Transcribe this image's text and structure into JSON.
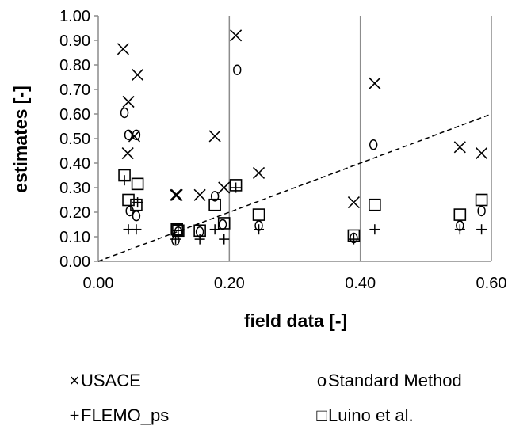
{
  "chart_data": {
    "type": "scatter",
    "xlabel": "field data [-]",
    "ylabel": "estimates [-]",
    "xlim": [
      0,
      0.6
    ],
    "ylim": [
      0,
      1.0
    ],
    "xticks": [
      "0.00",
      "0.20",
      "0.40",
      "0.60"
    ],
    "yticks": [
      "0.00",
      "0.10",
      "0.20",
      "0.30",
      "0.40",
      "0.50",
      "0.60",
      "0.70",
      "0.80",
      "0.90",
      "1.00"
    ],
    "grid": "vertical",
    "legend_position": "bottom",
    "reference_line": {
      "style": "dashed",
      "points": [
        [
          0,
          0
        ],
        [
          0.6,
          0.6
        ]
      ]
    },
    "series": [
      {
        "name": "USACE",
        "marker": "x",
        "points": [
          [
            0.038,
            0.865
          ],
          [
            0.046,
            0.65
          ],
          [
            0.045,
            0.44
          ],
          [
            0.06,
            0.76
          ],
          [
            0.055,
            0.51
          ],
          [
            0.118,
            0.27
          ],
          [
            0.12,
            0.27
          ],
          [
            0.155,
            0.27
          ],
          [
            0.178,
            0.51
          ],
          [
            0.192,
            0.3
          ],
          [
            0.21,
            0.92
          ],
          [
            0.245,
            0.36
          ],
          [
            0.39,
            0.24
          ],
          [
            0.422,
            0.725
          ],
          [
            0.552,
            0.465
          ],
          [
            0.585,
            0.44
          ]
        ]
      },
      {
        "name": "Standard Method",
        "marker": "o",
        "points": [
          [
            0.04,
            0.605
          ],
          [
            0.046,
            0.515
          ],
          [
            0.058,
            0.515
          ],
          [
            0.048,
            0.205
          ],
          [
            0.058,
            0.185
          ],
          [
            0.118,
            0.085
          ],
          [
            0.122,
            0.12
          ],
          [
            0.155,
            0.12
          ],
          [
            0.178,
            0.265
          ],
          [
            0.19,
            0.15
          ],
          [
            0.212,
            0.78
          ],
          [
            0.245,
            0.145
          ],
          [
            0.39,
            0.095
          ],
          [
            0.42,
            0.475
          ],
          [
            0.552,
            0.145
          ],
          [
            0.585,
            0.205
          ]
        ]
      },
      {
        "name": "FLEMO_ps",
        "marker": "+",
        "points": [
          [
            0.04,
            0.33
          ],
          [
            0.046,
            0.13
          ],
          [
            0.058,
            0.13
          ],
          [
            0.06,
            0.24
          ],
          [
            0.118,
            0.09
          ],
          [
            0.122,
            0.125
          ],
          [
            0.155,
            0.09
          ],
          [
            0.178,
            0.13
          ],
          [
            0.192,
            0.09
          ],
          [
            0.21,
            0.3
          ],
          [
            0.245,
            0.13
          ],
          [
            0.39,
            0.09
          ],
          [
            0.422,
            0.13
          ],
          [
            0.552,
            0.13
          ],
          [
            0.585,
            0.13
          ]
        ]
      },
      {
        "name": "Luino et al.",
        "marker": "square",
        "points": [
          [
            0.04,
            0.35
          ],
          [
            0.046,
            0.25
          ],
          [
            0.06,
            0.315
          ],
          [
            0.058,
            0.23
          ],
          [
            0.12,
            0.13
          ],
          [
            0.122,
            0.125
          ],
          [
            0.155,
            0.125
          ],
          [
            0.178,
            0.23
          ],
          [
            0.192,
            0.155
          ],
          [
            0.21,
            0.31
          ],
          [
            0.245,
            0.19
          ],
          [
            0.39,
            0.105
          ],
          [
            0.422,
            0.23
          ],
          [
            0.552,
            0.19
          ],
          [
            0.585,
            0.25
          ]
        ]
      }
    ]
  },
  "legend": {
    "usace": {
      "symbol": "×",
      "label": "USACE"
    },
    "standard": {
      "symbol": "o",
      "label": "Standard Method"
    },
    "flemo": {
      "symbol": "+",
      "label": "FLEMO_ps"
    },
    "luino": {
      "symbol": "□",
      "label": "Luino et al."
    }
  }
}
